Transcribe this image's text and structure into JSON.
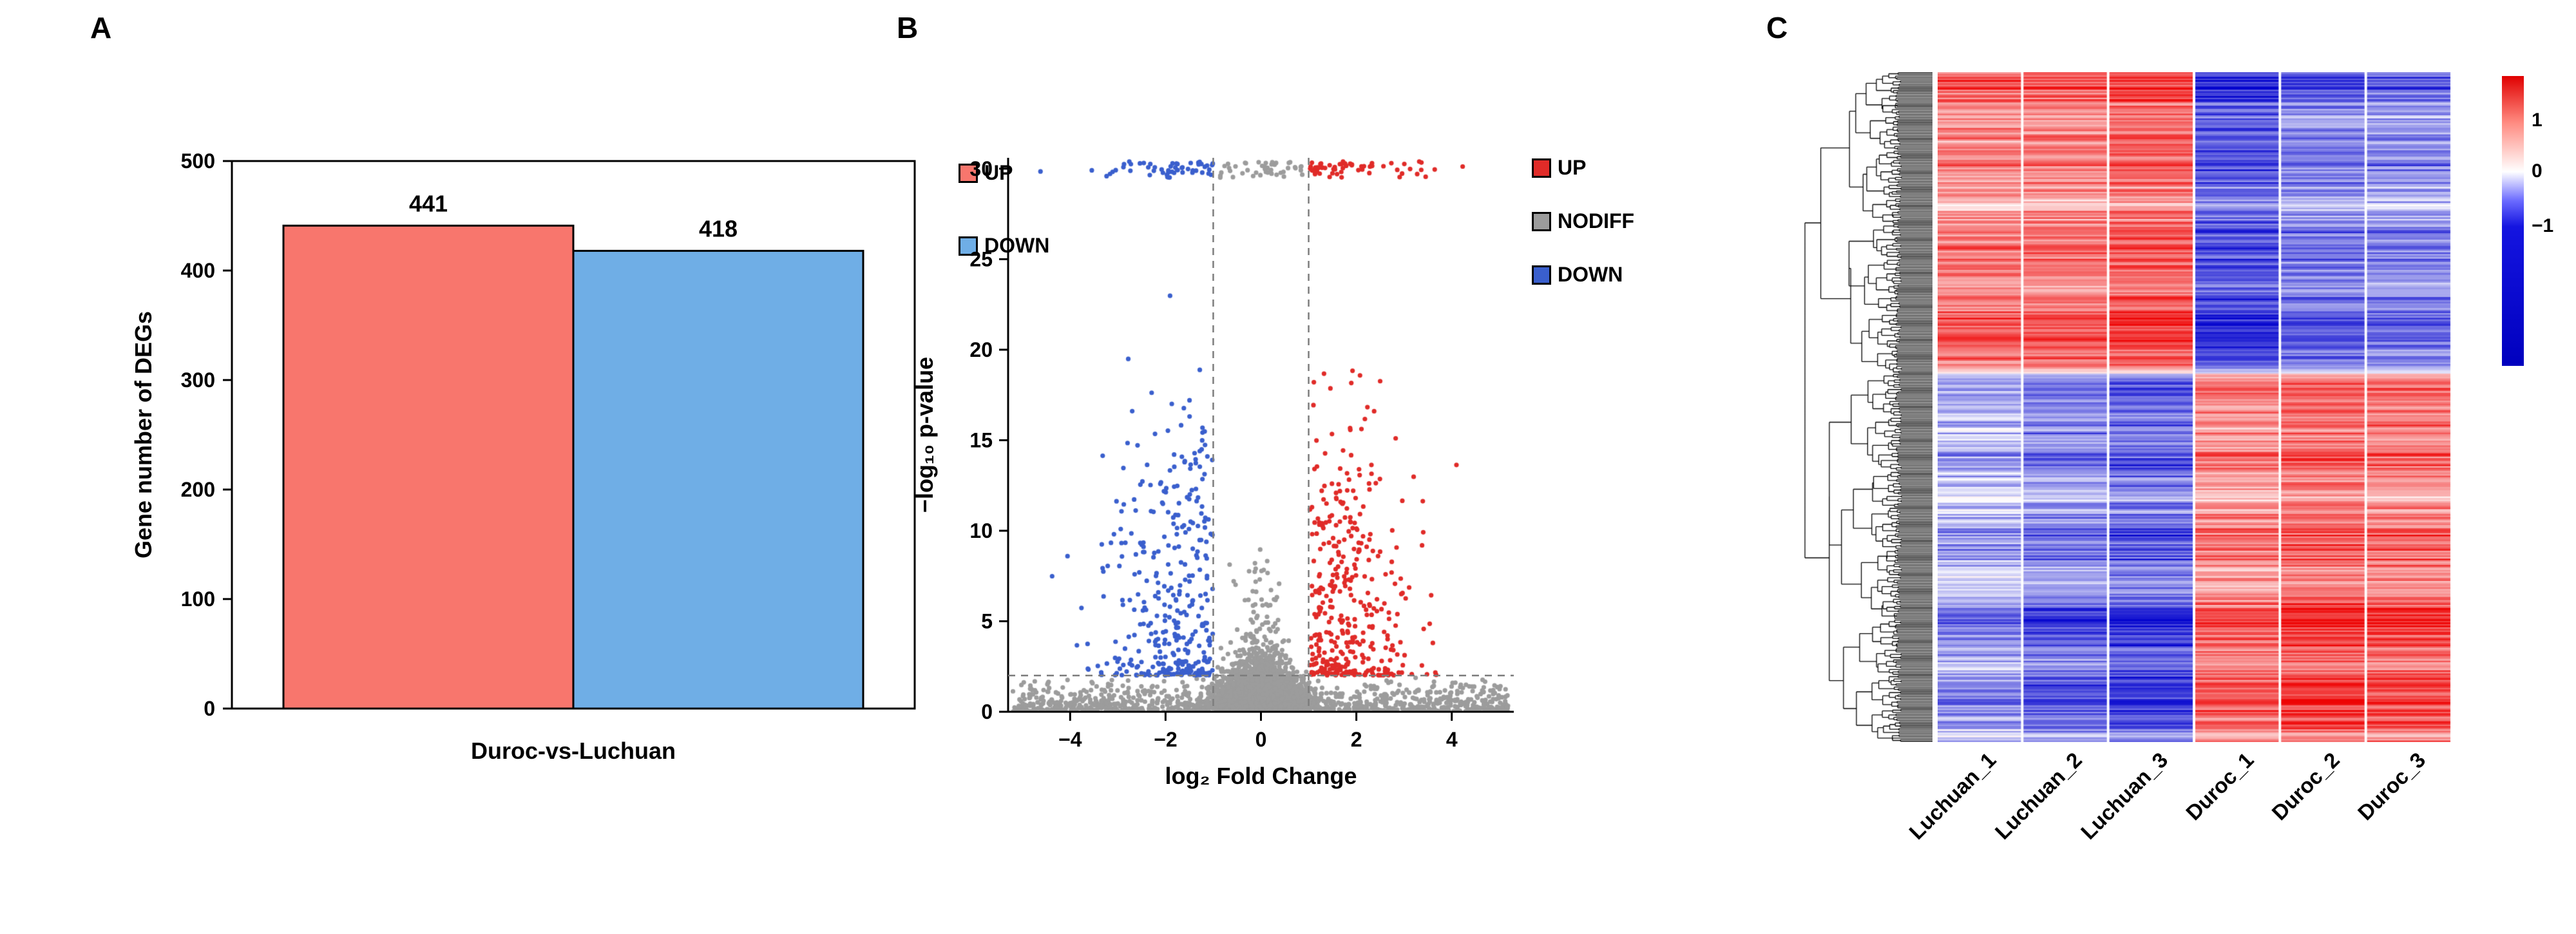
{
  "figure": {
    "panel_labels": [
      "A",
      "B",
      "C"
    ]
  },
  "chart_data": [
    {
      "type": "bar",
      "panel": "A",
      "categories": [
        "UP",
        "DOWN"
      ],
      "values": [
        441,
        418
      ],
      "bar_colors": [
        "#F8766D",
        "#6FAEE6"
      ],
      "xlabel": "Duroc-vs-Luchuan",
      "ylabel": "Gene number of DEGs",
      "ylim": [
        0,
        500
      ],
      "ytick_step": 100,
      "legend": [
        {
          "label": "UP",
          "color": "#F8766D"
        },
        {
          "label": "DOWN",
          "color": "#6FAEE6"
        }
      ]
    },
    {
      "type": "scatter",
      "panel": "B",
      "xlabel": "log₂ Fold Change",
      "ylabel": "−log₁₀ p-value",
      "xlim": [
        -5,
        5
      ],
      "xticks": [
        -4,
        -2,
        0,
        2,
        4
      ],
      "ylim": [
        0,
        30
      ],
      "ytick_step": 5,
      "thresholds": {
        "log2fc": [
          -1,
          1
        ],
        "neg_log10_p": 2
      },
      "point_counts": {
        "up": 441,
        "nodiff": 3700,
        "down": 418
      },
      "legend": [
        {
          "label": "UP",
          "color": "#E02B28"
        },
        {
          "label": "NODIFF",
          "color": "#9C9C9C"
        },
        {
          "label": "DOWN",
          "color": "#3A5FCD"
        }
      ]
    },
    {
      "type": "heatmap",
      "panel": "C",
      "columns": [
        "Luchuan_1",
        "Luchuan_2",
        "Luchuan_3",
        "Duroc_1",
        "Duroc_2",
        "Duroc_3"
      ],
      "colorbar_ticks": [
        "1",
        "0",
        "−1"
      ],
      "colors": {
        "high": "#EE0000",
        "mid": "#FFFFFF",
        "low": "#0000CD"
      },
      "clusters": {
        "top": {
          "rows_fraction": 0.45,
          "luchuan": "high",
          "duroc": "low"
        },
        "bottom": {
          "rows_fraction": 0.55,
          "luchuan": "low",
          "duroc": "high"
        }
      }
    }
  ]
}
